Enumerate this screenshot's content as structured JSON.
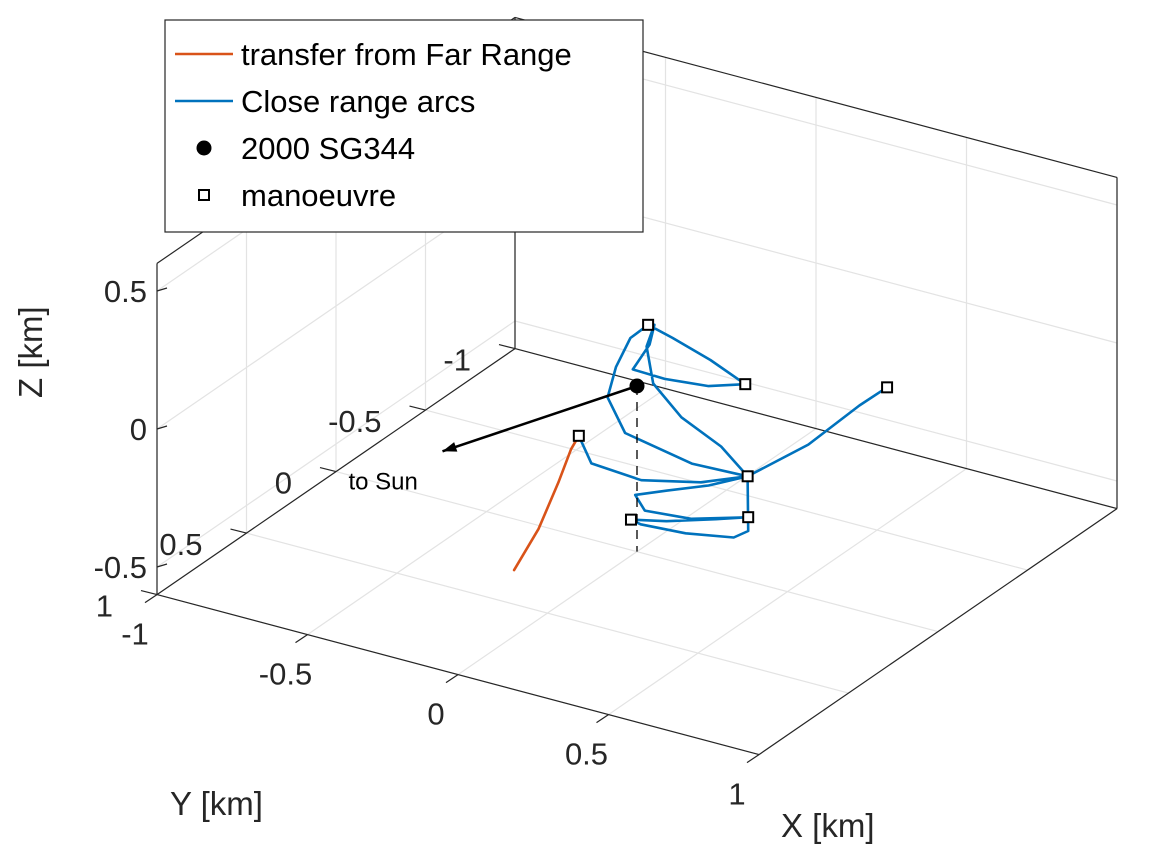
{
  "chart_data": {
    "type": "line",
    "projection": "3d",
    "grid": true,
    "box": true,
    "legend_placement": "top-left",
    "xlabel": "X [km]",
    "ylabel": "Y [km]",
    "zlabel": "Z [km]",
    "xlim": [
      -1,
      1
    ],
    "ylim": [
      -1,
      1
    ],
    "zlim": [
      -0.6,
      0.6
    ],
    "xticks": [
      "-1",
      "-0.5",
      "0",
      "0.5",
      "1"
    ],
    "yticks": [
      "-1",
      "-0.5",
      "0",
      "0.5",
      "1"
    ],
    "zticks": [
      "-0.5",
      "0",
      "0.5"
    ],
    "series": [
      {
        "name": "transfer from Far Range",
        "color": "#D95319",
        "style": "line",
        "points": [
          [
            -0.23,
            0.3,
            -0.6
          ],
          [
            -0.19,
            0.23,
            -0.47
          ],
          [
            -0.16,
            0.17,
            -0.32
          ],
          [
            -0.13,
            0.15,
            -0.2
          ],
          [
            -0.11,
            0.14,
            -0.15
          ]
        ]
      },
      {
        "name": "Close range arcs",
        "color": "#0072BD",
        "style": "line",
        "points": [
          [
            -0.11,
            0.14,
            -0.15
          ],
          [
            -0.08,
            0.12,
            -0.25
          ],
          [
            0.05,
            0.06,
            -0.3
          ],
          [
            0.2,
            -0.02,
            -0.3
          ],
          [
            0.32,
            -0.08,
            -0.27
          ],
          [
            0.2,
            0.03,
            -0.21
          ],
          [
            0.02,
            0.1,
            -0.12
          ],
          [
            -0.05,
            0.08,
            -0.02
          ],
          [
            -0.04,
            0.05,
            0.08
          ],
          [
            -0.01,
            0.02,
            0.18
          ],
          [
            0.025,
            -0.02,
            0.22
          ],
          [
            0.1,
            -0.03,
            0.19
          ],
          [
            0.22,
            -0.04,
            0.14
          ],
          [
            0.33,
            -0.05,
            0.08
          ],
          [
            0.22,
            -0.03,
            0.05
          ],
          [
            0.08,
            -0.02,
            0.04
          ],
          [
            -0.02,
            -0.01,
            0.05
          ],
          [
            0.03,
            -0.02,
            0.15
          ],
          [
            0.04,
            -0.03,
            0.22
          ],
          [
            0.02,
            -0.02,
            0.14
          ],
          [
            0.03,
            -0.04,
            0.0
          ],
          [
            0.1,
            -0.08,
            -0.12
          ],
          [
            0.22,
            -0.1,
            -0.2
          ],
          [
            0.32,
            -0.08,
            -0.27
          ],
          [
            0.22,
            -0.03,
            -0.31
          ],
          [
            0.1,
            0.0,
            -0.35
          ],
          [
            0.0,
            0.01,
            -0.39
          ],
          [
            0.02,
            -0.01,
            -0.45
          ],
          [
            0.15,
            -0.05,
            -0.46
          ],
          [
            0.28,
            -0.1,
            -0.44
          ],
          [
            0.31,
            -0.1,
            -0.43
          ],
          [
            0.22,
            -0.07,
            -0.45
          ],
          [
            0.08,
            -0.03,
            -0.48
          ],
          [
            -0.02,
            0.0,
            -0.49
          ],
          [
            0.0,
            -0.02,
            -0.51
          ],
          [
            0.12,
            -0.07,
            -0.53
          ],
          [
            0.25,
            -0.12,
            -0.53
          ],
          [
            0.31,
            -0.1,
            -0.48
          ],
          [
            0.32,
            -0.08,
            -0.27
          ],
          [
            0.48,
            -0.15,
            -0.14
          ],
          [
            0.62,
            -0.2,
            0.02
          ],
          [
            0.7,
            -0.22,
            0.1
          ]
        ]
      },
      {
        "name": "2000 SG344",
        "color": "#000000",
        "style": "marker",
        "points": [
          [
            0,
            0,
            0
          ]
        ]
      },
      {
        "name": "manoeuvre",
        "color": "#000000",
        "style": "marker",
        "points": [
          [
            -0.11,
            0.14,
            -0.15
          ],
          [
            0.32,
            -0.08,
            -0.27
          ],
          [
            0.025,
            -0.02,
            0.22
          ],
          [
            0.33,
            -0.05,
            0.08
          ],
          [
            0.31,
            -0.1,
            -0.43
          ],
          [
            -0.02,
            0.0,
            -0.49
          ],
          [
            0.7,
            -0.22,
            0.1
          ]
        ]
      }
    ],
    "annotations": [
      {
        "text": "to Sun",
        "from": [
          0,
          0,
          0
        ],
        "to": [
          -0.45,
          0.33,
          -0.22
        ]
      }
    ],
    "legend": [
      {
        "label": "transfer from Far Range",
        "symbol": "line",
        "color": "#D95319"
      },
      {
        "label": "Close range arcs",
        "symbol": "line",
        "color": "#0072BD"
      },
      {
        "label": "2000 SG344",
        "symbol": "filled-circle",
        "color": "#000000"
      },
      {
        "label": "manoeuvre",
        "symbol": "open-square",
        "color": "#000000"
      }
    ]
  }
}
